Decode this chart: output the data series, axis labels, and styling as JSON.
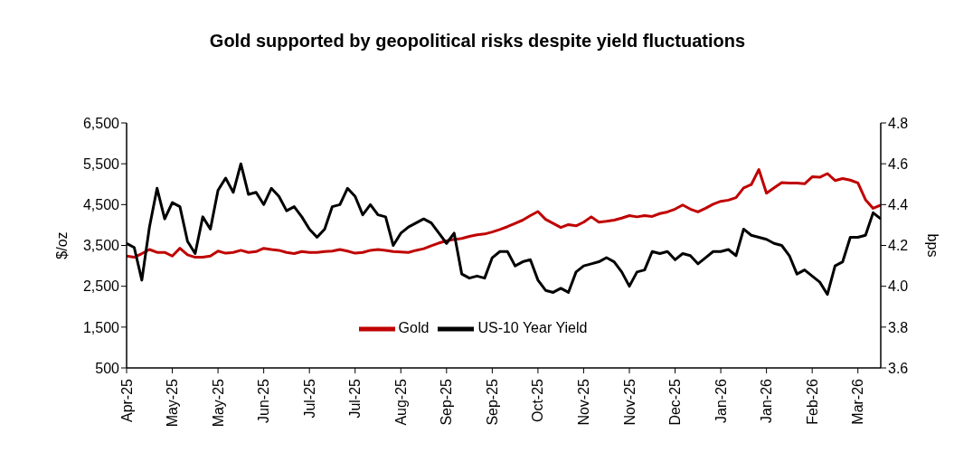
{
  "chart_data": {
    "type": "line",
    "title": "Gold supported by geopolitical risks despite yield fluctuations",
    "ylabel": "$/oz",
    "y2label": "bps",
    "categories": [
      "Apr-25",
      null,
      null,
      null,
      null,
      null,
      "May-25",
      null,
      null,
      null,
      null,
      null,
      "May-25",
      null,
      null,
      null,
      null,
      null,
      "Jun-25",
      null,
      null,
      null,
      null,
      null,
      "Jul-25",
      null,
      null,
      null,
      null,
      null,
      "Jul-25",
      null,
      null,
      null,
      null,
      null,
      "Aug-25",
      null,
      null,
      null,
      null,
      null,
      "Sep-25",
      null,
      null,
      null,
      null,
      null,
      "Sep-25",
      null,
      null,
      null,
      null,
      null,
      "Oct-25",
      null,
      null,
      null,
      null,
      null,
      "Nov-25",
      null,
      null,
      null,
      null,
      null,
      "Nov-25",
      null,
      null,
      null,
      null,
      null,
      "Dec-25",
      null,
      null,
      null,
      null,
      null,
      "Jan-26",
      null,
      null,
      null,
      null,
      null,
      "Jan-26",
      null,
      null,
      null,
      null,
      null,
      "Feb-26",
      null,
      null,
      null,
      null,
      null,
      "Mar-26",
      null,
      null,
      null
    ],
    "series": [
      {
        "name": "Gold",
        "color": "#c00000",
        "values": [
          3240,
          3210,
          3300,
          3400,
          3330,
          3330,
          3240,
          3430,
          3270,
          3210,
          3210,
          3240,
          3360,
          3310,
          3330,
          3380,
          3330,
          3350,
          3430,
          3400,
          3380,
          3330,
          3300,
          3350,
          3330,
          3330,
          3350,
          3360,
          3400,
          3360,
          3310,
          3330,
          3380,
          3400,
          3380,
          3350,
          3340,
          3330,
          3380,
          3420,
          3490,
          3560,
          3610,
          3650,
          3670,
          3720,
          3760,
          3780,
          3830,
          3890,
          3960,
          4040,
          4120,
          4230,
          4330,
          4140,
          4040,
          3940,
          4010,
          3980,
          4070,
          4200,
          4070,
          4090,
          4120,
          4170,
          4230,
          4200,
          4230,
          4210,
          4280,
          4320,
          4390,
          4490,
          4390,
          4320,
          4410,
          4510,
          4580,
          4610,
          4670,
          4910,
          4990,
          5360,
          4780,
          4910,
          5040,
          5030,
          5030,
          5010,
          5180,
          5170,
          5260,
          5090,
          5140,
          5100,
          5030,
          4620,
          4410,
          4490
        ]
      },
      {
        "name": "US-10 Year Yield",
        "color": "#000000",
        "axis": "y2",
        "values": [
          4.21,
          4.19,
          4.03,
          4.29,
          4.48,
          4.33,
          4.41,
          4.39,
          4.22,
          4.16,
          4.34,
          4.28,
          4.47,
          4.53,
          4.46,
          4.6,
          4.45,
          4.46,
          4.4,
          4.48,
          4.44,
          4.37,
          4.39,
          4.34,
          4.28,
          4.24,
          4.28,
          4.39,
          4.4,
          4.48,
          4.44,
          4.35,
          4.4,
          4.35,
          4.34,
          4.2,
          4.26,
          4.29,
          4.31,
          4.33,
          4.31,
          4.26,
          4.21,
          4.26,
          4.06,
          4.04,
          4.05,
          4.04,
          4.14,
          4.17,
          4.17,
          4.1,
          4.12,
          4.13,
          4.03,
          3.98,
          3.97,
          3.99,
          3.97,
          4.07,
          4.1,
          4.11,
          4.12,
          4.14,
          4.12,
          4.07,
          4.0,
          4.07,
          4.08,
          4.17,
          4.16,
          4.17,
          4.13,
          4.16,
          4.15,
          4.11,
          4.14,
          4.17,
          4.17,
          4.18,
          4.15,
          4.28,
          4.25,
          4.24,
          4.23,
          4.21,
          4.2,
          4.15,
          4.06,
          4.08,
          4.05,
          4.02,
          3.96,
          4.1,
          4.12,
          4.24,
          4.24,
          4.25,
          4.36,
          4.33
        ]
      }
    ],
    "ylim": [
      500,
      6500
    ],
    "yticks": [
      {
        "value": 500,
        "label": "500"
      },
      {
        "value": 1500,
        "label": "1,500"
      },
      {
        "value": 2500,
        "label": "2,500"
      },
      {
        "value": 3500,
        "label": "3,500"
      },
      {
        "value": 4500,
        "label": "4,500"
      },
      {
        "value": 5500,
        "label": "5,500"
      },
      {
        "value": 6500,
        "label": "6,500"
      }
    ],
    "y2lim": [
      3.6,
      4.8
    ],
    "y2ticks": [
      {
        "value": 3.6,
        "label": "3.6"
      },
      {
        "value": 3.8,
        "label": "3.8"
      },
      {
        "value": 4.0,
        "label": "4.0"
      },
      {
        "value": 4.2,
        "label": "4.2"
      },
      {
        "value": 4.4,
        "label": "4.4"
      },
      {
        "value": 4.6,
        "label": "4.6"
      },
      {
        "value": 4.8,
        "label": "4.8"
      }
    ],
    "grid": false,
    "legend": "bottom",
    "marker": "none",
    "line_style": "solid"
  }
}
